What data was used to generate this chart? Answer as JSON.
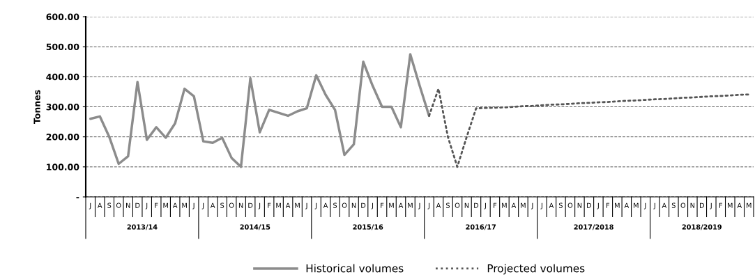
{
  "chart_data": {
    "type": "line",
    "ylabel": "Tonnes",
    "categories": [
      "J",
      "A",
      "S",
      "O",
      "N",
      "D",
      "J",
      "F",
      "M",
      "A",
      "M",
      "J",
      "J",
      "A",
      "S",
      "O",
      "N",
      "D",
      "J",
      "F",
      "M",
      "A",
      "M",
      "J",
      "J",
      "A",
      "S",
      "O",
      "N",
      "D",
      "J",
      "F",
      "M",
      "A",
      "M",
      "J",
      "J",
      "A",
      "S",
      "O",
      "N",
      "D",
      "J",
      "F",
      "M",
      "A",
      "M",
      "J",
      "J",
      "A",
      "S",
      "O",
      "N",
      "D",
      "J",
      "F",
      "M",
      "A",
      "M",
      "J",
      "J",
      "A",
      "S",
      "O",
      "N",
      "D",
      "J",
      "F",
      "M",
      "A",
      "M"
    ],
    "series": [
      {
        "name": "Historical volumes",
        "color": "#8c8c8c",
        "line_style": "solid",
        "values": [
          260,
          268,
          200,
          110,
          135,
          383,
          190,
          232,
          197,
          245,
          360,
          335,
          185,
          180,
          197,
          130,
          100,
          395,
          215,
          290,
          280,
          270,
          285,
          295,
          405,
          340,
          290,
          140,
          175,
          450,
          370,
          300,
          300,
          232,
          475,
          370,
          270,
          null,
          null,
          null,
          null,
          null,
          null,
          null,
          null,
          null,
          null,
          null,
          null,
          null,
          null,
          null,
          null,
          null,
          null,
          null,
          null,
          null,
          null,
          null,
          null,
          null,
          null,
          null,
          null,
          null,
          null,
          null,
          null,
          null,
          null
        ]
      },
      {
        "name": "Projected volumes",
        "color": "#555555",
        "line_style": "dotted",
        "values": [
          null,
          null,
          null,
          null,
          null,
          null,
          null,
          null,
          null,
          null,
          null,
          null,
          null,
          null,
          null,
          null,
          null,
          null,
          null,
          null,
          null,
          null,
          null,
          null,
          null,
          null,
          null,
          null,
          null,
          null,
          null,
          null,
          null,
          null,
          null,
          null,
          270,
          360,
          200,
          100,
          200,
          295,
          296,
          297,
          298,
          300,
          302,
          303,
          305,
          307,
          308,
          310,
          312,
          313,
          315,
          316,
          318,
          320,
          321,
          323,
          325,
          326,
          328,
          330,
          331,
          333,
          335,
          336,
          338,
          340,
          341
        ]
      }
    ],
    "ylim": [
      0,
      600
    ],
    "yticks": [
      {
        "value": 0,
        "label": "-"
      },
      {
        "value": 100,
        "label": "100.00"
      },
      {
        "value": 200,
        "label": "200.00"
      },
      {
        "value": 300,
        "label": "300.00"
      },
      {
        "value": 400,
        "label": "400.00"
      },
      {
        "value": 500,
        "label": "500.00"
      },
      {
        "value": 600,
        "label": "600.00"
      }
    ],
    "grid": "y",
    "legend": "bottom",
    "annotations": [
      "2013/14",
      "2014/15",
      "2015/16",
      "2016/17",
      "2017/2018",
      "2018/2019"
    ]
  }
}
